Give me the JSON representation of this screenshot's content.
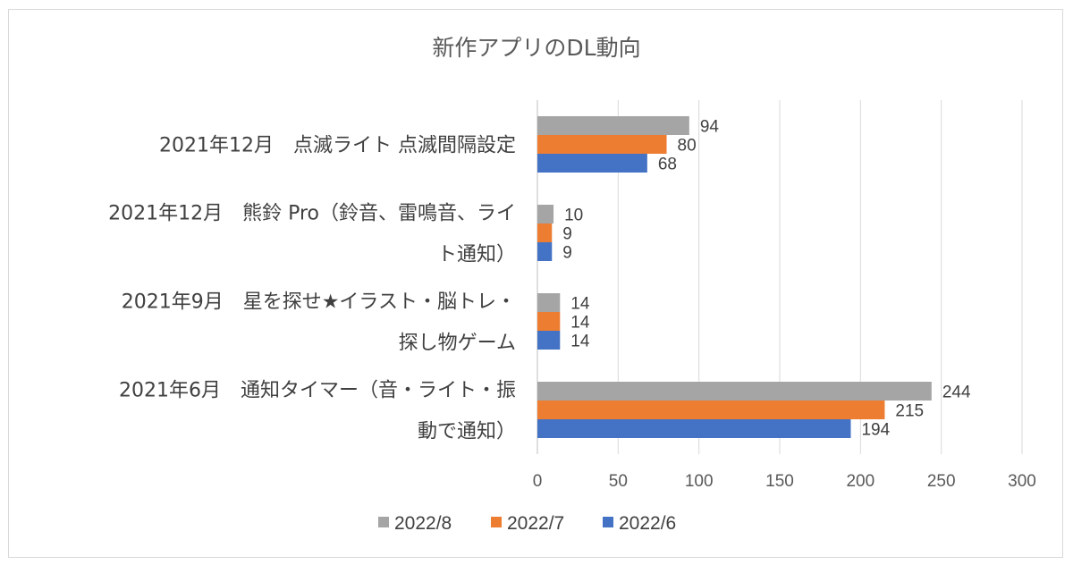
{
  "chart_data": {
    "type": "bar",
    "orientation": "horizontal",
    "title": "新作アプリのDL動向",
    "categories": [
      "2021年12月　点滅ライト 点滅間隔設定",
      "2021年12月　熊鈴 Pro（鈴音、雷鳴音、ライト通知）",
      "2021年9月　星を探せ★イラスト・脳トレ・探し物ゲーム",
      "2021年6月　通知タイマー（音・ライト・振動で通知）"
    ],
    "category_lines": [
      [
        "2021年12月　点滅ライト 点滅間隔設定"
      ],
      [
        "2021年12月　熊鈴 Pro（鈴音、雷鳴音、ライ",
        "ト通知）"
      ],
      [
        "2021年9月　星を探せ★イラスト・脳トレ・",
        "探し物ゲーム"
      ],
      [
        "2021年6月　通知タイマー（音・ライト・振",
        "動で通知）"
      ]
    ],
    "series": [
      {
        "name": "2022/8",
        "color": "#a5a5a5",
        "values": [
          94,
          10,
          14,
          244
        ]
      },
      {
        "name": "2022/7",
        "color": "#ed7d31",
        "values": [
          80,
          9,
          14,
          215
        ]
      },
      {
        "name": "2022/6",
        "color": "#4472c4",
        "values": [
          68,
          9,
          14,
          194
        ]
      }
    ],
    "xlim": [
      0,
      300
    ],
    "xticks": [
      0,
      50,
      100,
      150,
      200,
      250,
      300
    ],
    "grid": true,
    "data_labels": true,
    "legend_position": "bottom"
  }
}
